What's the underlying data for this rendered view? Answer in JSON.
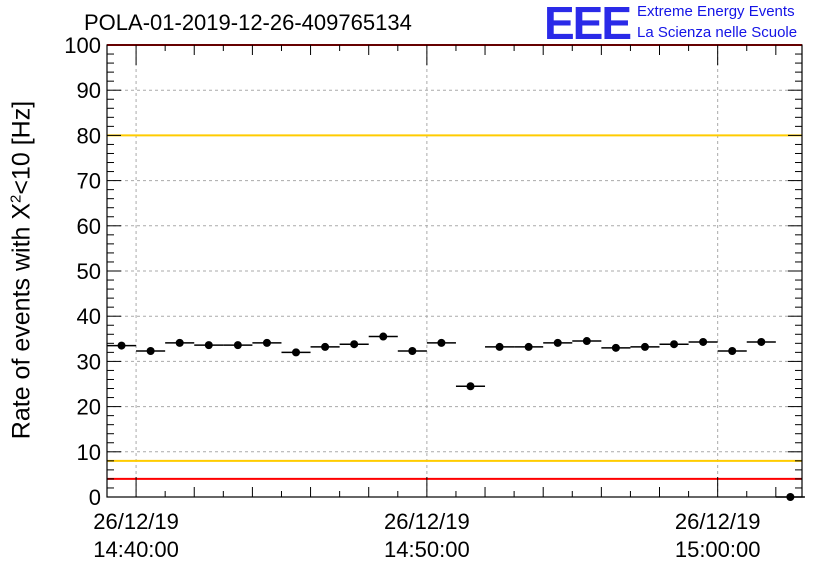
{
  "chart_data": {
    "type": "scatter",
    "title": "POLA-01-2019-12-26-409765134",
    "ylabel": "Rate of events with χ²<10 [Hz]",
    "ylabel_parts": {
      "pre": "Rate of events with X",
      "sup": "2",
      "post": "<10 [Hz]"
    },
    "ylim": [
      0,
      100
    ],
    "yticks": [
      0,
      10,
      20,
      30,
      40,
      50,
      60,
      70,
      80,
      90,
      100
    ],
    "xlim_minutes": [
      -1,
      22.9
    ],
    "xticks": [
      {
        "x": 0,
        "date": "26/12/19",
        "time": "14:40:00"
      },
      {
        "x": 10,
        "date": "26/12/19",
        "time": "14:50:00"
      },
      {
        "x": 20,
        "date": "26/12/19",
        "time": "15:00:00"
      }
    ],
    "x_minutes": [
      -0.5,
      0.5,
      1.5,
      2.5,
      3.5,
      4.5,
      5.5,
      6.5,
      7.5,
      8.5,
      9.5,
      10.5,
      11.5,
      12.5,
      13.5,
      14.5,
      15.5,
      16.5,
      17.5,
      18.5,
      19.5,
      20.5,
      21.5,
      22.5
    ],
    "values": [
      33.5,
      32.3,
      34.1,
      33.6,
      33.6,
      34.1,
      32.0,
      33.2,
      33.8,
      35.5,
      32.3,
      34.1,
      24.5,
      33.2,
      33.2,
      34.1,
      34.5,
      33.0,
      33.2,
      33.8,
      34.3,
      32.3,
      34.3,
      0
    ],
    "x_halfwidth": 0.5,
    "reference_lines": [
      {
        "y": 100,
        "color": "#ff0000"
      },
      {
        "y": 80,
        "color": "#ffcc00"
      },
      {
        "y": 8,
        "color": "#ffcc00"
      },
      {
        "y": 4,
        "color": "#ff0000"
      }
    ],
    "grid": true
  },
  "logo": {
    "text": "EEE",
    "line1": "Extreme Energy Events",
    "line2": "La Scienza nelle Scuole",
    "color": "#1414e6"
  }
}
